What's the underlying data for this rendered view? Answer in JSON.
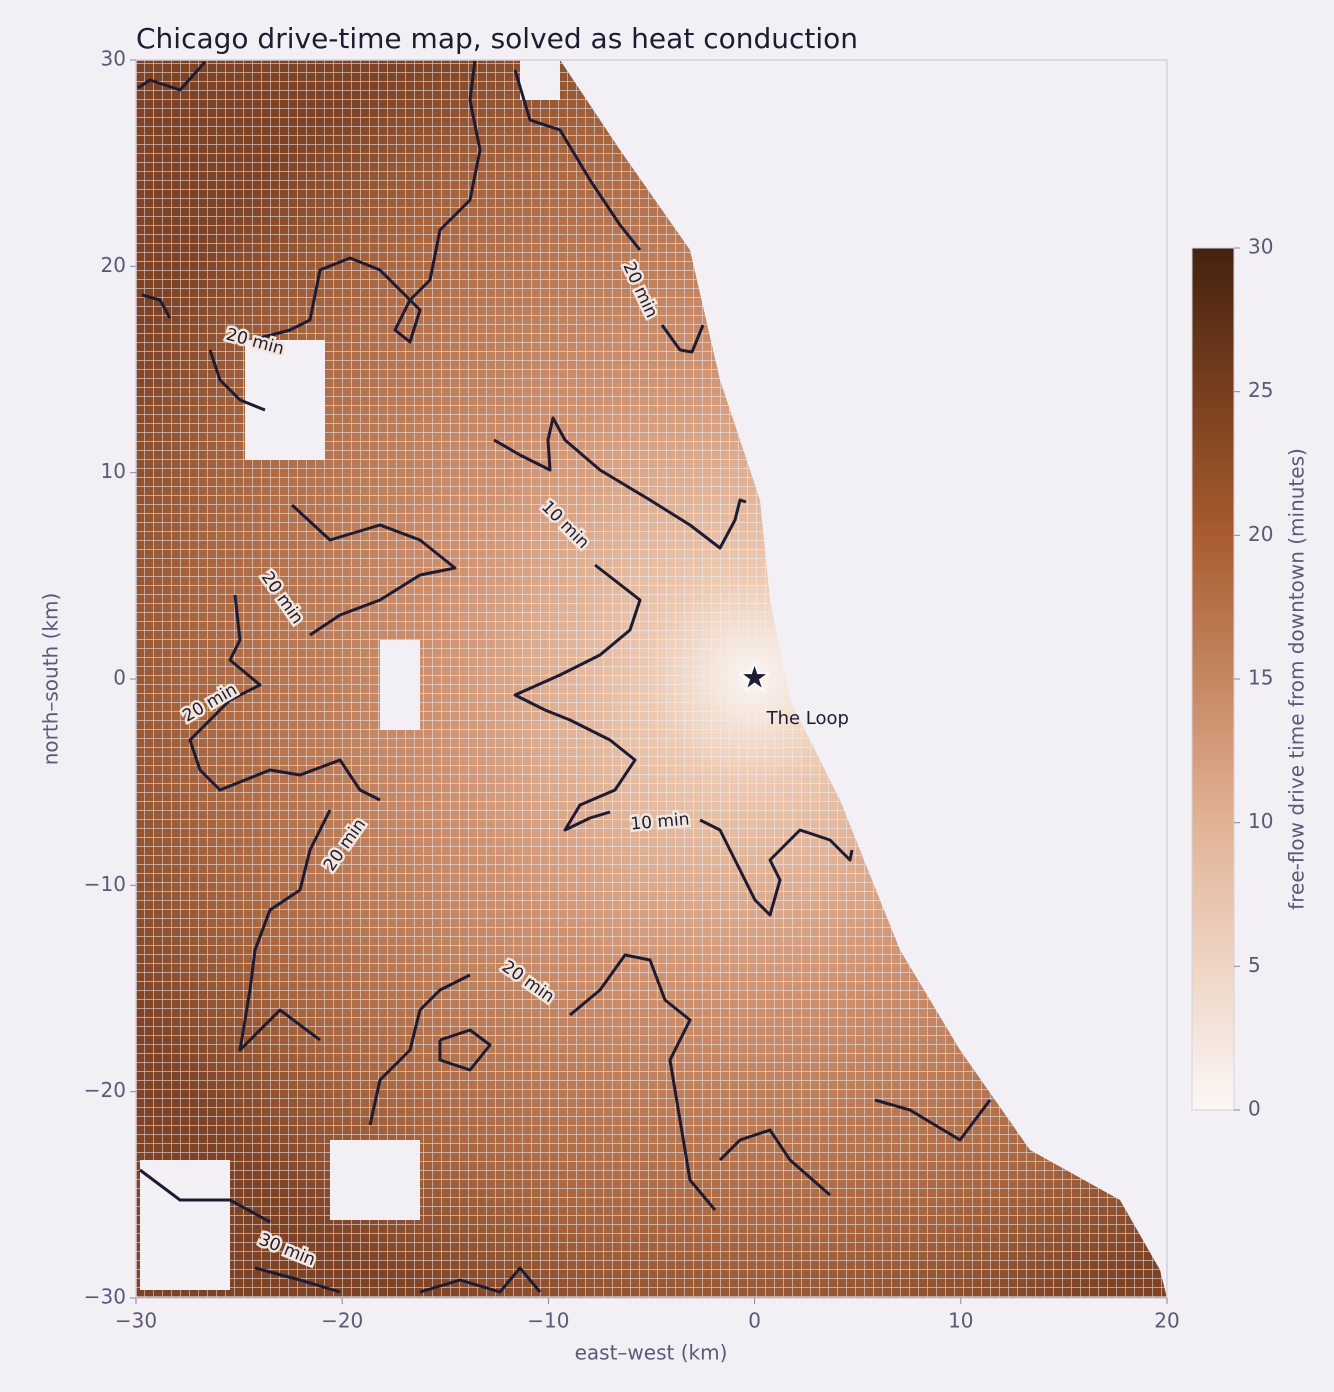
{
  "chart_data": {
    "type": "map",
    "title": "Chicago drive-time map, solved as heat conduction",
    "xlabel": "east–west (km)",
    "ylabel": "north–south (km)",
    "xlim": [
      -30,
      20
    ],
    "ylim": [
      -30,
      30
    ],
    "xticks": [
      {
        "value": -30,
        "label": "−30"
      },
      {
        "value": -20,
        "label": "−20"
      },
      {
        "value": -10,
        "label": "−10"
      },
      0,
      10,
      20
    ],
    "yticks": [
      {
        "value": -30,
        "label": "−30"
      },
      {
        "value": -20,
        "label": "−20"
      },
      {
        "value": -10,
        "label": "−10"
      },
      0,
      10,
      20,
      30
    ],
    "colorbar": {
      "label": "free-flow drive time from downtown (minutes)",
      "lim": [
        0,
        30
      ],
      "ticks": [
        0,
        5,
        10,
        15,
        20,
        25,
        30
      ]
    },
    "contours": [
      {
        "level": 10,
        "label": "10 min"
      },
      {
        "level": 20,
        "label": "20 min"
      },
      {
        "level": 30,
        "label": "30 min"
      }
    ],
    "annotation": {
      "text": "The Loop",
      "x": 0,
      "y": 0
    }
  }
}
